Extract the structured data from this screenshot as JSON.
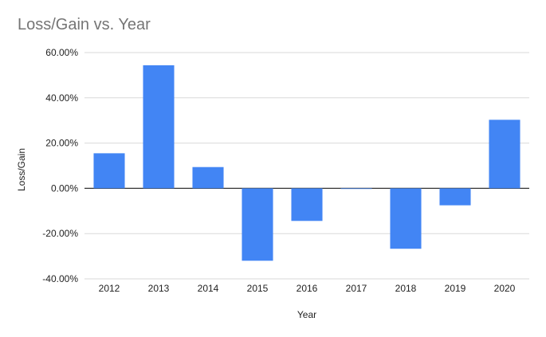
{
  "chart_data": {
    "type": "bar",
    "title": "Loss/Gain vs. Year",
    "xlabel": "Year",
    "ylabel": "Loss/Gain",
    "categories": [
      "2012",
      "2013",
      "2014",
      "2015",
      "2016",
      "2017",
      "2018",
      "2019",
      "2020"
    ],
    "values": [
      15.5,
      54.4,
      9.4,
      -32.0,
      -14.4,
      -0.1,
      -26.7,
      -7.5,
      30.3
    ],
    "ylim": [
      -40,
      60
    ],
    "yticks": [
      60,
      40,
      20,
      0,
      -20,
      -40
    ],
    "ytick_labels": [
      "60.00%",
      "40.00%",
      "20.00%",
      "0.00%",
      "-20.00%",
      "-40.00%"
    ],
    "grid": true,
    "bar_color": "#4285f4"
  }
}
